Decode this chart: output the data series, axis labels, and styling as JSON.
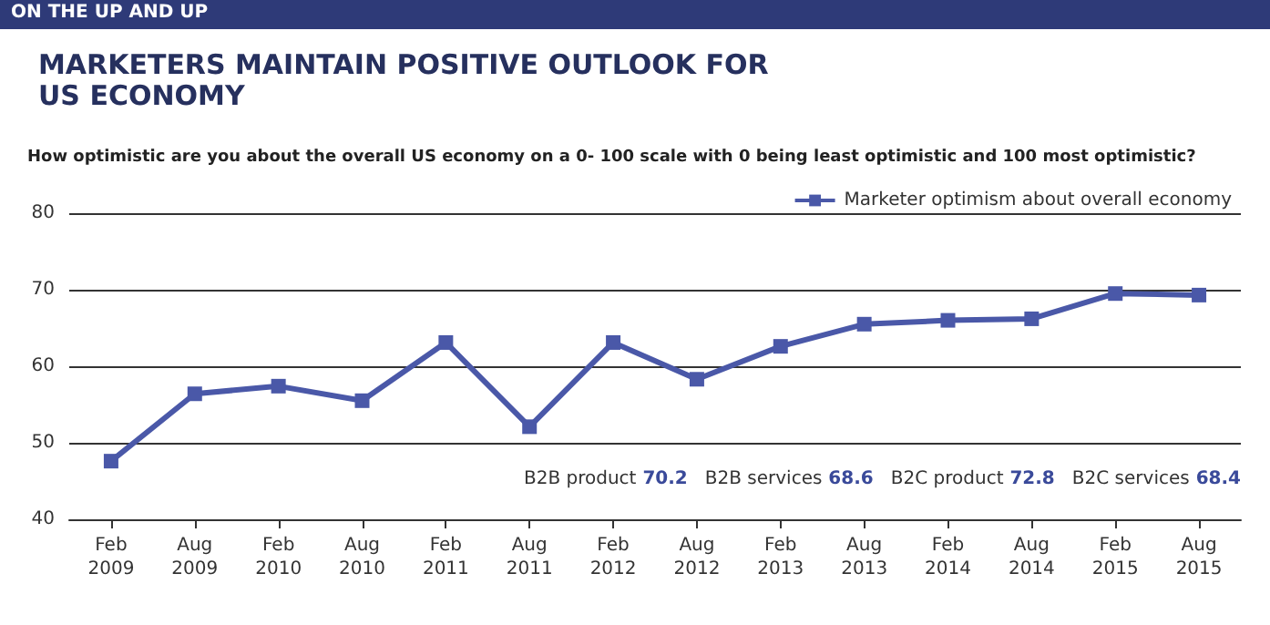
{
  "chart_data": {
    "type": "line",
    "title": "MARKETERS MAINTAIN POSITIVE OUTLOOK FOR\nUS ECONOMY",
    "subtitle": "How optimistic are you about the overall US economy on a 0- 100 scale with 0 being least optimistic and 100 most optimistic?",
    "annotations": [
      "ON THE UP AND UP",
      "B2B product 70.2",
      "B2B services 68.6",
      "B2C product 72.8",
      "B2C services 68.4"
    ],
    "categories": [
      "Feb\n2009",
      "Aug\n2009",
      "Feb\n2010",
      "Aug\n2010",
      "Feb\n2011",
      "Aug\n2011",
      "Feb\n2012",
      "Aug\n2012",
      "Feb\n2013",
      "Aug\n2013",
      "Feb\n2014",
      "Aug\n2014",
      "Feb\n2015",
      "Aug\n2015"
    ],
    "series": [
      {
        "name": "Marketer optimism about overall economy",
        "color": "#4a58a8",
        "values": [
          47.6,
          56.4,
          57.4,
          55.5,
          63.1,
          52.1,
          63.1,
          58.3,
          62.6,
          65.5,
          66.0,
          66.2,
          69.5,
          69.3
        ]
      }
    ],
    "ylim": [
      40,
      80
    ],
    "yticks": [
      40,
      50,
      60,
      70,
      80
    ],
    "grid": "y",
    "legend": "top right",
    "marker": "square",
    "line_style": "solid"
  }
}
